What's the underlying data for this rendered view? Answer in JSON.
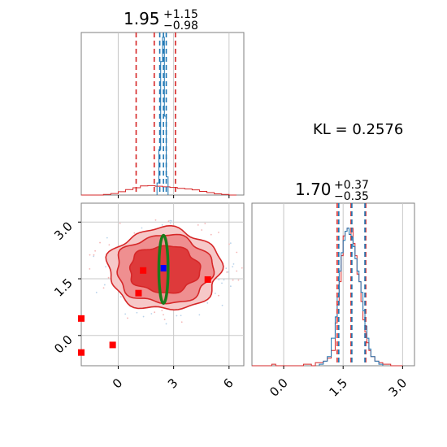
{
  "colors": {
    "red": "#d62728",
    "red_fill_1": "#f6c8c8",
    "red_fill_2": "#ef8f90",
    "red_fill_3": "#de3a3b",
    "blue": "#1f77b4",
    "green": "#1a7a1a",
    "grid": "#c8c8c8",
    "frame": "#7f7f7f"
  },
  "annotation": {
    "kl_text": "KL = 0.2576"
  },
  "chart_data": [
    {
      "type": "histogram",
      "panel": "top-left",
      "title": {
        "median": "1.95",
        "plus": "+1.15",
        "minus": "−0.98"
      },
      "x_range": [
        -2,
        6.8
      ],
      "x_grid": [
        0,
        3,
        6
      ],
      "grid": true,
      "series": [
        {
          "name": "",
          "color": "red",
          "style": "step",
          "bin_edges": [
            -2.0,
            -1.6,
            -1.2,
            -0.8,
            -0.4,
            0.0,
            0.4,
            0.8,
            1.2,
            1.6,
            2.0,
            2.4,
            2.8,
            3.2,
            3.6,
            4.0,
            4.4,
            4.8,
            5.2,
            5.6,
            6.0,
            6.4
          ],
          "counts": [
            0,
            0,
            0,
            0.02,
            0.05,
            0.11,
            0.18,
            0.24,
            0.3,
            0.31,
            0.29,
            0.27,
            0.25,
            0.22,
            0.2,
            0.17,
            0.12,
            0.08,
            0.04,
            0.02,
            0
          ],
          "quantiles": [
            0.97,
            1.95,
            3.1
          ]
        },
        {
          "name": "",
          "color": "blue",
          "style": "step",
          "bin_edges": [
            2.1,
            2.2,
            2.3,
            2.4,
            2.5,
            2.6,
            2.7
          ],
          "counts": [
            0.4,
            1.5,
            4.4,
            5.2,
            2.6,
            0.6
          ],
          "quantiles": [
            2.25,
            2.45,
            2.6
          ]
        }
      ]
    },
    {
      "type": "histogram",
      "panel": "bottom-right",
      "title": {
        "median": "1.70",
        "plus": "+0.37",
        "minus": "−0.35"
      },
      "x_range": [
        -0.8,
        3.3
      ],
      "x_ticks": [
        "0.0",
        "1.5",
        "3.0"
      ],
      "x_tick_values": [
        0,
        1.5,
        3.0
      ],
      "grid": true,
      "series": [
        {
          "name": "",
          "color": "red",
          "style": "step",
          "bin_edges": [
            -0.8,
            -0.7,
            -0.6,
            -0.5,
            -0.4,
            -0.3,
            -0.2,
            -0.1,
            0.0,
            0.1,
            0.2,
            0.3,
            0.4,
            0.5,
            0.6,
            0.7,
            0.8,
            0.9,
            1.0,
            1.1,
            1.2,
            1.3,
            1.35,
            1.4,
            1.45,
            1.5,
            1.55,
            1.6,
            1.65,
            1.7,
            1.75,
            1.8,
            1.85,
            1.9,
            1.95,
            2.0,
            2.05,
            2.1,
            2.15,
            2.2,
            2.3,
            2.4,
            2.5,
            2.6,
            2.7,
            2.8,
            2.9,
            3.0
          ],
          "counts": [
            0,
            0,
            0,
            0,
            0,
            0.01,
            0,
            0,
            0,
            0,
            0,
            0,
            0,
            0.01,
            0.01,
            0,
            0.02,
            0.02,
            0.03,
            0.05,
            0.1,
            0.28,
            0.4,
            0.55,
            0.72,
            0.85,
            0.88,
            0.9,
            0.86,
            0.9,
            0.8,
            0.72,
            0.6,
            0.55,
            0.42,
            0.3,
            0.22,
            0.15,
            0.1,
            0.06,
            0.03,
            0.02,
            0.01,
            0.01,
            0,
            0,
            0
          ],
          "quantiles": [
            1.35,
            1.7,
            2.07
          ]
        },
        {
          "name": "",
          "color": "blue",
          "style": "step",
          "bin_edges": [
            0.9,
            1.0,
            1.1,
            1.2,
            1.3,
            1.35,
            1.4,
            1.45,
            1.5,
            1.55,
            1.6,
            1.65,
            1.7,
            1.75,
            1.8,
            1.85,
            1.9,
            1.95,
            2.0,
            2.05,
            2.1,
            2.15,
            2.2,
            2.3,
            2.4,
            2.5
          ],
          "counts": [
            0.01,
            0.03,
            0.06,
            0.18,
            0.32,
            0.45,
            0.62,
            0.74,
            0.82,
            0.88,
            0.9,
            0.86,
            0.84,
            0.78,
            0.7,
            0.62,
            0.55,
            0.48,
            0.36,
            0.26,
            0.18,
            0.11,
            0.06,
            0.03,
            0.01
          ],
          "quantiles": [
            1.39,
            1.72,
            2.05
          ]
        }
      ]
    },
    {
      "type": "scatter",
      "panel": "bottom-left",
      "x_range": [
        -2,
        6.8
      ],
      "y_range": [
        -0.8,
        3.5
      ],
      "x_ticks": [
        "0",
        "3",
        "6"
      ],
      "x_tick_values": [
        0,
        3,
        6
      ],
      "y_ticks": [
        "0.0",
        "1.5",
        "3.0"
      ],
      "y_tick_values": [
        0,
        1.5,
        3.0
      ],
      "grid": true,
      "contours": {
        "color": "red",
        "center": [
          2.5,
          1.75
        ],
        "levels": [
          {
            "rx": 3.05,
            "ry": 1.08
          },
          {
            "rx": 2.6,
            "ry": 0.9
          },
          {
            "rx": 1.9,
            "ry": 0.62
          }
        ]
      },
      "ellipse": {
        "color": "green",
        "center": [
          2.45,
          1.75
        ],
        "rx": 0.25,
        "ry": 0.9
      },
      "red_squares": [
        [
          1.35,
          1.72
        ],
        [
          1.1,
          1.12
        ],
        [
          4.85,
          1.48
        ],
        [
          -0.3,
          -0.25
        ],
        [
          -2.0,
          0.45
        ],
        [
          -2.0,
          -0.45
        ]
      ],
      "blue_square": [
        2.45,
        1.78
      ]
    }
  ]
}
